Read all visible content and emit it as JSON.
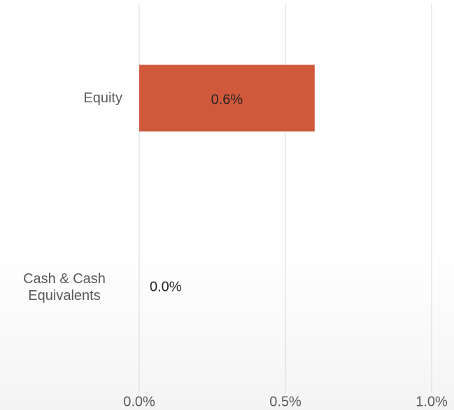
{
  "chart_data": {
    "type": "bar",
    "orientation": "horizontal",
    "categories": [
      "Equity",
      "Cash & Cash Equivalents"
    ],
    "values": [
      0.6,
      0.0
    ],
    "value_labels": [
      "0.6%",
      "0.0%"
    ],
    "color": "#d0593c",
    "xlim": [
      0,
      1.0
    ],
    "xticks": [
      {
        "value": 0,
        "label": "0.0%"
      },
      {
        "value": 0.5,
        "label": "0.5%"
      },
      {
        "value": 1.0,
        "label": "1.0%"
      }
    ],
    "grid": true
  }
}
